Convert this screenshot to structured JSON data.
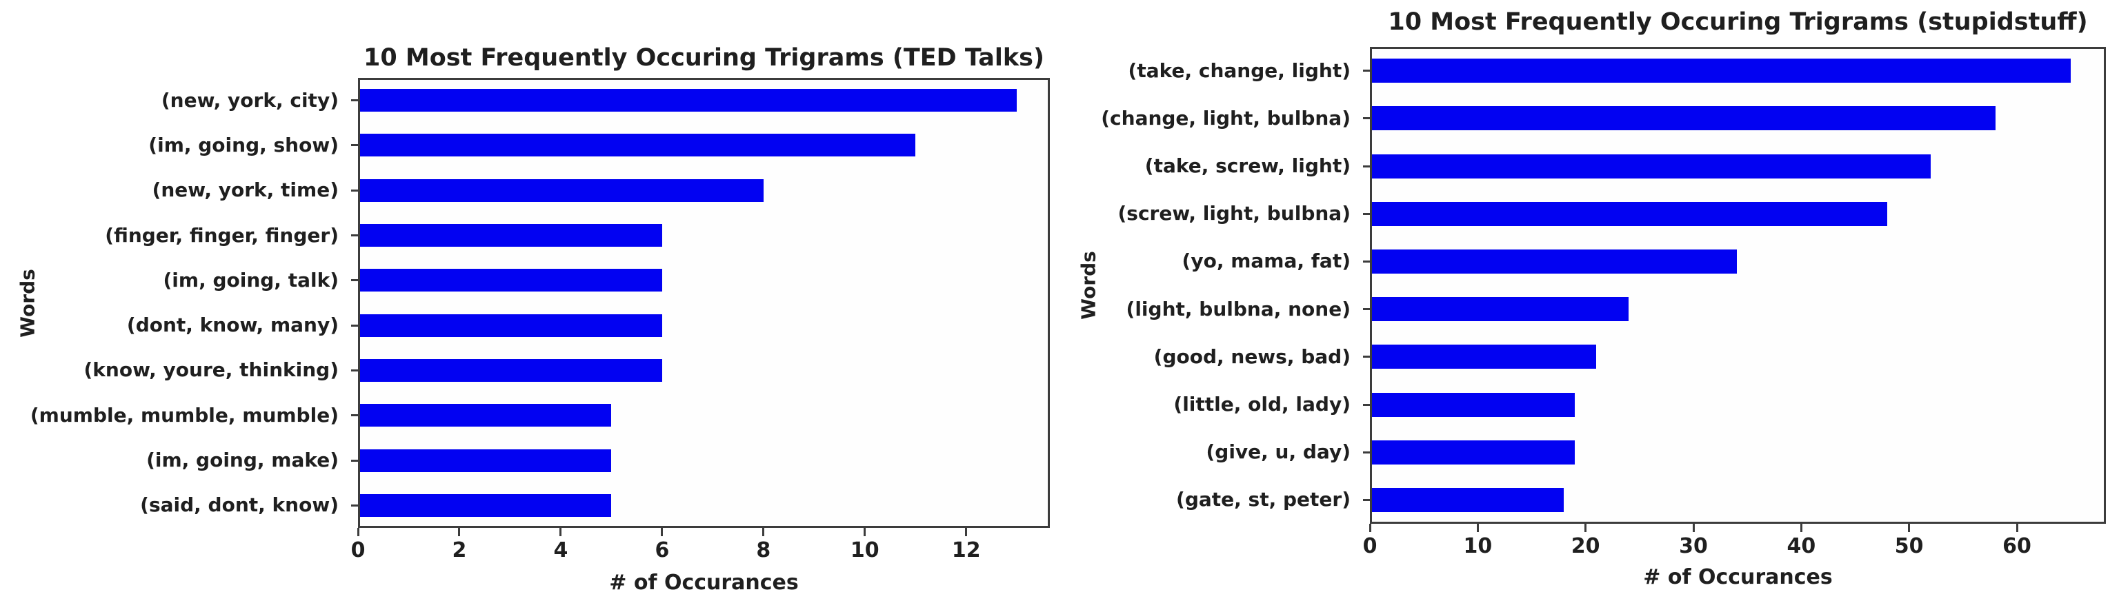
{
  "figure": {
    "background": "#ffffff",
    "text_color": "#1f1f1f",
    "axis_color": "#3c3c3c"
  },
  "chart_data": [
    {
      "type": "bar",
      "orientation": "horizontal",
      "title": "10 Most Frequently Occuring Trigrams (TED Talks)",
      "xlabel": "# of Occurances",
      "ylabel": "Words",
      "categories": [
        "(new, york, city)",
        "(im, going, show)",
        "(new, york, time)",
        "(finger, finger, finger)",
        "(im, going, talk)",
        "(dont, know, many)",
        "(know, youre, thinking)",
        "(mumble, mumble, mumble)",
        "(im, going, make)",
        "(said, dont, know)"
      ],
      "values": [
        13,
        11,
        8,
        6,
        6,
        6,
        6,
        5,
        5,
        5
      ],
      "xticks": [
        0,
        2,
        4,
        6,
        8,
        10,
        12
      ],
      "xlim": [
        0,
        13.65
      ],
      "bar_color": "#0202f2",
      "grid": false,
      "legend": null
    },
    {
      "type": "bar",
      "orientation": "horizontal",
      "title": "10 Most Frequently Occuring Trigrams (stupidstuff)",
      "xlabel": "# of Occurances",
      "ylabel": "Words",
      "categories": [
        "(take, change, light)",
        "(change, light, bulbna)",
        "(take, screw, light)",
        "(screw, light, bulbna)",
        "(yo, mama, fat)",
        "(light, bulbna, none)",
        "(good, news, bad)",
        "(little, old, lady)",
        "(give, u, day)",
        "(gate, st, peter)"
      ],
      "values": [
        65,
        58,
        52,
        48,
        34,
        24,
        21,
        19,
        19,
        18
      ],
      "xticks": [
        0,
        10,
        20,
        30,
        40,
        50,
        60
      ],
      "xlim": [
        0,
        68.25
      ],
      "bar_color": "#0202f2",
      "grid": false,
      "legend": null
    }
  ]
}
